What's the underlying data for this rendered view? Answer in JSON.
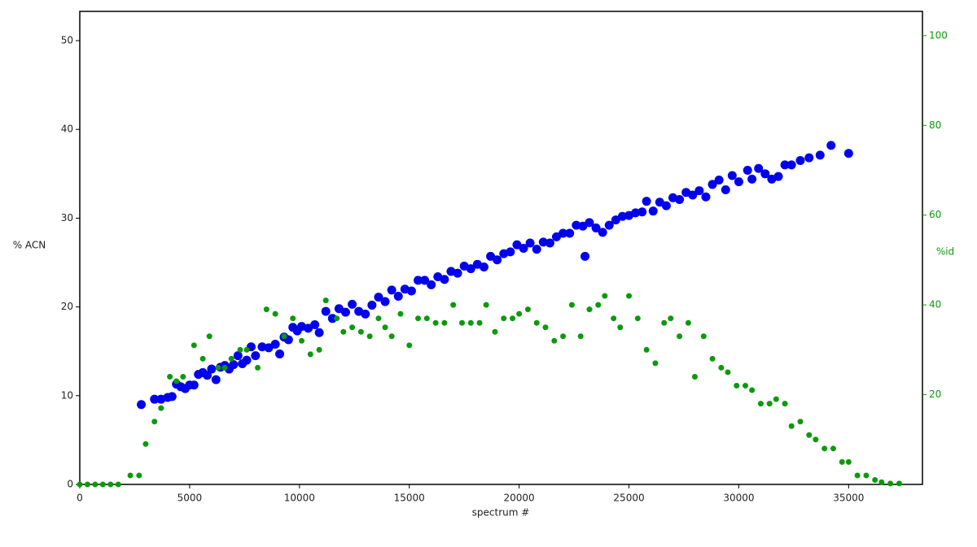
{
  "chart_data": {
    "type": "scatter",
    "xlabel": "spectrum #",
    "ylabel": "% ACN",
    "y2label": "%id",
    "xlim": [
      0,
      38360
    ],
    "xticks": [
      0,
      5000,
      10000,
      15000,
      20000,
      25000,
      30000,
      35000
    ],
    "ylim": [
      0,
      53.3
    ],
    "yticks": [
      0,
      10,
      20,
      30,
      40,
      50
    ],
    "y2lim": [
      0,
      105.4
    ],
    "y2ticks": [
      20,
      40,
      60,
      80,
      100
    ],
    "series": [
      {
        "color": "#0000ee",
        "axis": "y",
        "size": 5.5,
        "x": [
          2800,
          3400,
          3700,
          4000,
          4200,
          4400,
          4600,
          4800,
          5000,
          5200,
          5400,
          5600,
          5800,
          6000,
          6200,
          6400,
          6600,
          6800,
          7000,
          7200,
          7400,
          7600,
          7800,
          8000,
          8300,
          8600,
          8900,
          9100,
          9300,
          9500,
          9700,
          9900,
          10100,
          10400,
          10700,
          10900,
          11200,
          11500,
          11800,
          12100,
          12400,
          12700,
          13000,
          13300,
          13600,
          13900,
          14200,
          14500,
          14800,
          15100,
          15400,
          15700,
          16000,
          16300,
          16600,
          16900,
          17200,
          17500,
          17800,
          18100,
          18400,
          18700,
          19000,
          19300,
          19600,
          19900,
          20200,
          20500,
          20800,
          21100,
          21400,
          21700,
          22000,
          22300,
          22600,
          22900,
          23000,
          23200,
          23500,
          23800,
          24100,
          24400,
          24700,
          25000,
          25300,
          25600,
          25800,
          26100,
          26400,
          26700,
          27000,
          27300,
          27600,
          27900,
          28200,
          28500,
          28800,
          29100,
          29400,
          29700,
          30000,
          30400,
          30600,
          30900,
          31200,
          31500,
          31800,
          32100,
          32400,
          32800,
          33200,
          33700,
          34200,
          35000
        ],
        "values": [
          9,
          9.6,
          9.6,
          9.8,
          9.9,
          11.3,
          11,
          10.8,
          11.2,
          11.2,
          12.4,
          12.6,
          12.3,
          13,
          11.8,
          13.2,
          13.4,
          13,
          13.5,
          14.5,
          13.6,
          14,
          15.5,
          14.5,
          15.5,
          15.4,
          15.8,
          14.7,
          16.6,
          16.3,
          17.7,
          17.3,
          17.8,
          17.6,
          18,
          17.1,
          19.5,
          18.7,
          19.8,
          19.4,
          20.3,
          19.5,
          19.2,
          20.2,
          21.1,
          20.6,
          21.9,
          21.2,
          22,
          21.8,
          23,
          23,
          22.5,
          23.4,
          23.1,
          24,
          23.8,
          24.6,
          24.3,
          24.8,
          24.5,
          25.7,
          25.3,
          26,
          26.2,
          27,
          26.6,
          27.2,
          26.5,
          27.3,
          27.2,
          27.9,
          28.3,
          28.3,
          29.2,
          29.1,
          25.7,
          29.5,
          28.9,
          28.4,
          29.2,
          29.8,
          30.2,
          30.3,
          30.6,
          30.7,
          31.9,
          30.8,
          31.8,
          31.4,
          32.3,
          32.1,
          32.9,
          32.6,
          33.1,
          32.4,
          33.8,
          34.3,
          33.2,
          34.8,
          34.1,
          35.4,
          34.4,
          35.6,
          35,
          34.4,
          34.7,
          36,
          36,
          36.5,
          36.8,
          37.1,
          38.2,
          37.3
        ]
      },
      {
        "color": "#0a9a0a",
        "axis": "y2",
        "size": 3.5,
        "x": [
          0,
          350,
          700,
          1050,
          1400,
          1750,
          2300,
          2700,
          3000,
          3400,
          3700,
          4100,
          4400,
          4700,
          5200,
          5600,
          5900,
          6300,
          6600,
          6900,
          7300,
          7600,
          8100,
          8500,
          8900,
          9300,
          9700,
          10100,
          10500,
          10900,
          11200,
          11700,
          12000,
          12400,
          12800,
          13200,
          13600,
          13900,
          14200,
          14600,
          15000,
          15400,
          15800,
          16200,
          16600,
          17000,
          17400,
          17800,
          18200,
          18500,
          18900,
          19300,
          19700,
          20000,
          20400,
          20800,
          21200,
          21600,
          22000,
          22400,
          22800,
          23200,
          23600,
          23900,
          24300,
          24600,
          25000,
          25400,
          25800,
          26200,
          26600,
          26900,
          27300,
          27700,
          28000,
          28400,
          28800,
          29200,
          29500,
          29900,
          30300,
          30600,
          31000,
          31400,
          31700,
          32100,
          32400,
          32800,
          33200,
          33500,
          33900,
          34300,
          34700,
          35000,
          35400,
          35800,
          36200,
          36500,
          36900,
          37300
        ],
        "values": [
          0,
          0,
          0,
          0,
          0,
          0,
          2,
          2,
          9,
          14,
          17,
          24,
          23,
          24,
          31,
          28,
          33,
          26,
          26,
          28,
          30,
          30,
          26,
          39,
          38,
          33,
          37,
          32,
          29,
          30,
          41,
          37,
          34,
          35,
          34,
          33,
          37,
          35,
          33,
          38,
          31,
          37,
          37,
          36,
          36,
          40,
          36,
          36,
          36,
          40,
          34,
          37,
          37,
          38,
          39,
          36,
          35,
          32,
          33,
          40,
          33,
          39,
          40,
          42,
          37,
          35,
          42,
          37,
          30,
          27,
          36,
          37,
          33,
          36,
          24,
          33,
          28,
          26,
          25,
          22,
          22,
          21,
          18,
          18,
          19,
          18,
          13,
          14,
          11,
          10,
          8,
          8,
          5,
          5,
          2,
          2,
          1,
          0.5,
          0.2,
          0.2
        ]
      }
    ]
  }
}
